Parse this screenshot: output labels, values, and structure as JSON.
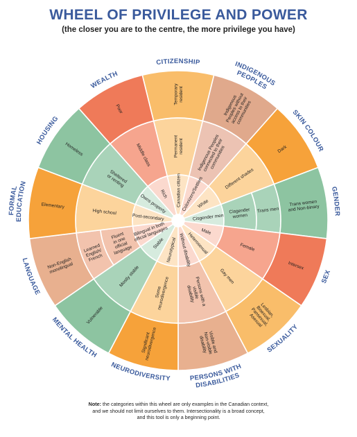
{
  "title": "WHEEL OF PRIVILEGE AND POWER",
  "subtitle": "(the closer you are to the centre, the more privilege you have)",
  "note": {
    "label": "Note:",
    "line1": "the categories within this wheel are only examples in the Canadian context,",
    "line2": "and we should not limit ourselves to them. Intersectionality is a broad concept,",
    "line3": "and this tool is only a beginning point."
  },
  "colors": {
    "inner": [
      "#fbd9ce",
      "#fde4c4",
      "#d6ebde",
      "#fde4c4"
    ],
    "middle": [
      "#f6b39f",
      "#fcd49c",
      "#a9d3b9",
      "#fcd49c"
    ],
    "outer": [
      "#ef7a59",
      "#f9bd6a",
      "#8dc4a1",
      "#f6a23a"
    ],
    "divider": "#ffffff",
    "heading": "#3a5a9c"
  },
  "sectors": [
    {
      "name": "CITIZENSHIP",
      "inner": [
        "Canadian citizen"
      ],
      "middle": [
        "Permanent",
        "resident"
      ],
      "outer": [
        "Temporary",
        "resident"
      ],
      "shades": [
        "#fde4c4",
        "#fcd49c",
        "#f9bd6a"
      ]
    },
    {
      "name": "INDIGENOUS PEOPLES",
      "inner": [
        "Colonizers/Settlers"
      ],
      "middle": [
        "Indigenous Peoples",
        "connected to their",
        "communities"
      ],
      "outer": [
        "Indigenous",
        "Peoples without",
        "access to their",
        "communities"
      ],
      "shades": [
        "#fbd9ce",
        "#ecc3b3",
        "#e0a98c"
      ]
    },
    {
      "name": "SKIN COLOUR",
      "inner": [
        "White"
      ],
      "middle": [
        "Different shades"
      ],
      "outer": [
        "Dark"
      ],
      "shades": [
        "#fde4c4",
        "#fcd49c",
        "#f6a23a"
      ]
    },
    {
      "name": "GENDER",
      "inner": [
        "Cisgender men"
      ],
      "middle": [
        "Cisgender",
        "women"
      ],
      "middle2": [
        "Trans men"
      ],
      "outer": [
        "Trans women",
        "and Non-binary"
      ],
      "shades": [
        "#d6ebde",
        "#a9d3b9",
        "#8dc4a1"
      ]
    },
    {
      "name": "SEX",
      "inner": [
        "Male"
      ],
      "middle": [
        "Female"
      ],
      "outer": [
        "Intersex"
      ],
      "shades": [
        "#fbd9ce",
        "#f6a58e",
        "#ef7a59"
      ]
    },
    {
      "name": "SEXUALITY",
      "inner": [
        "Heterosexual"
      ],
      "middle": [
        "Gay men"
      ],
      "outer": [
        "Lesbian,",
        "Bisexual,",
        "Pansexual,",
        "Asexual"
      ],
      "shades": [
        "#fde4c4",
        "#fcd49c",
        "#f9bd6a"
      ]
    },
    {
      "name": "PERSONS WITH DISABILITIES",
      "inner": [
        "Without disability"
      ],
      "middle": [
        "Persons with a",
        "visible",
        "disability"
      ],
      "outer": [
        "Visible and",
        "Non-visible",
        "disability"
      ],
      "shades": [
        "#fbd9ce",
        "#f2c3ad",
        "#e8b08f"
      ]
    },
    {
      "name": "NEURODIVERSITY",
      "inner": [
        "Neurotypical"
      ],
      "middle": [
        "Some",
        "neurodivergence"
      ],
      "outer": [
        "Significant",
        "neurodivergence"
      ],
      "shades": [
        "#fde4c4",
        "#fcd49c",
        "#f6a23a"
      ]
    },
    {
      "name": "MENTAL HEALTH",
      "inner": [
        "Stable"
      ],
      "middle": [
        "Mostly stable"
      ],
      "outer": [
        "Vulnerable"
      ],
      "shades": [
        "#d6ebde",
        "#a9d3b9",
        "#8dc4a1"
      ]
    },
    {
      "name": "LANGUAGE",
      "inner": [
        "Bilingual in both",
        "official languages"
      ],
      "middle": [
        "Fluent",
        "in one",
        "official",
        "language"
      ],
      "middle2": [
        "Learned",
        "English/",
        "French"
      ],
      "outer": [
        "Non-English",
        "monolingual"
      ],
      "shades": [
        "#fbd9ce",
        "#f2c3ad",
        "#e8b08f"
      ]
    },
    {
      "name": "FORMAL EDUCATION",
      "inner": [
        "Post-secondary"
      ],
      "middle": [
        "High school"
      ],
      "outer": [
        "Elementary"
      ],
      "shades": [
        "#fde4c4",
        "#fcd49c",
        "#f6a23a"
      ]
    },
    {
      "name": "HOUSING",
      "inner": [
        "Owns property"
      ],
      "middle": [
        "Sheltered",
        "or renting"
      ],
      "outer": [
        "Homeless"
      ],
      "shades": [
        "#d6ebde",
        "#a9d3b9",
        "#8dc4a1"
      ]
    },
    {
      "name": "WEALTH",
      "inner": [
        "Rich"
      ],
      "middle": [
        "Middle class"
      ],
      "outer": [
        "Poor"
      ],
      "shades": [
        "#fbd9ce",
        "#f6a58e",
        "#ef7a59"
      ]
    }
  ]
}
